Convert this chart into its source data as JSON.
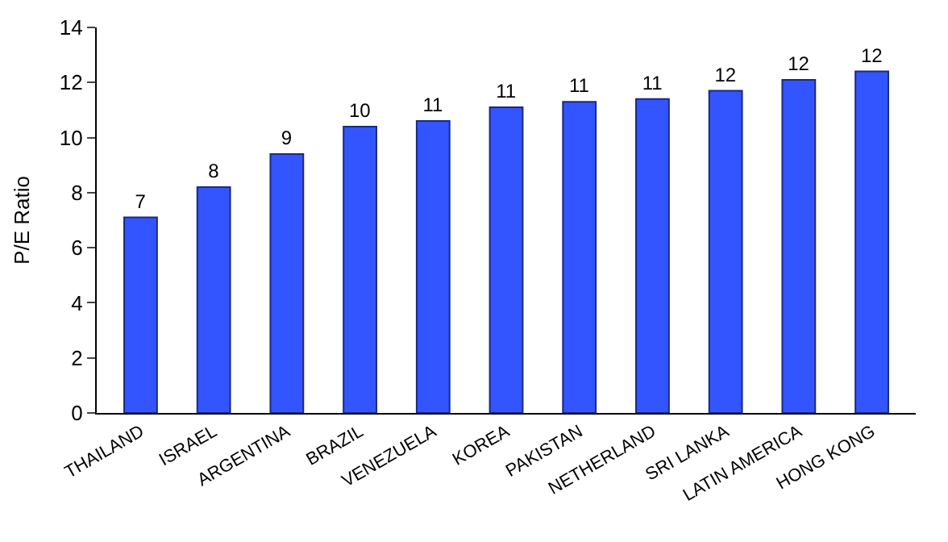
{
  "chart_data": {
    "type": "bar",
    "ylabel": "P/E Ratio",
    "categories": [
      "THAILAND",
      "ISRAEL",
      "ARGENTINA",
      "BRAZIL",
      "VENEZUELA",
      "KOREA",
      "PAKISTAN",
      "NETHERLAND",
      "SRI LANKA",
      "LATIN AMERICA",
      "HONG KONG"
    ],
    "values": [
      7.1,
      8.2,
      9.4,
      10.4,
      10.6,
      11.1,
      11.3,
      11.4,
      11.7,
      12.1,
      12.4
    ],
    "value_labels": [
      "7",
      "8",
      "9",
      "10",
      "11",
      "11",
      "11",
      "11",
      "12",
      "12",
      "12"
    ],
    "color": "#3355ff",
    "ylim": [
      0,
      14
    ],
    "yticks": [
      0,
      2,
      4,
      6,
      8,
      10,
      12,
      14
    ],
    "legend": false
  }
}
